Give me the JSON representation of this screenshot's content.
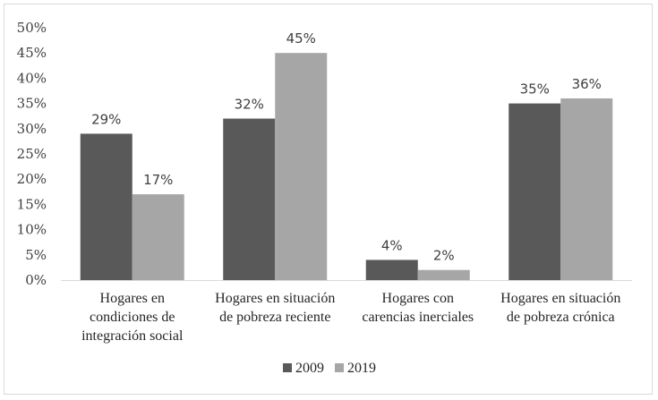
{
  "chart_data": {
    "type": "bar",
    "title": "",
    "xlabel": "",
    "ylabel": "",
    "ylim": [
      0,
      50
    ],
    "yticks": [
      0,
      5,
      10,
      15,
      20,
      25,
      30,
      35,
      40,
      45,
      50
    ],
    "ytick_labels": [
      "0%",
      "5%",
      "10%",
      "15%",
      "20%",
      "25%",
      "30%",
      "35%",
      "40%",
      "45%",
      "50%"
    ],
    "grid": false,
    "legend_position": "bottom",
    "categories": [
      [
        "Hogares en",
        "condiciones de",
        "integración social"
      ],
      [
        "Hogares en situación",
        "de pobreza reciente"
      ],
      [
        "Hogares con",
        "carencias inerciales"
      ],
      [
        "Hogares en situación",
        "de pobreza crónica"
      ]
    ],
    "series": [
      {
        "name": "2009",
        "color": "#595959",
        "values": [
          29,
          32,
          4,
          35
        ],
        "labels": [
          "29%",
          "32%",
          "4%",
          "35%"
        ]
      },
      {
        "name": "2019",
        "color": "#a6a6a6",
        "values": [
          17,
          45,
          2,
          36
        ],
        "labels": [
          "17%",
          "45%",
          "2%",
          "36%"
        ]
      }
    ]
  }
}
